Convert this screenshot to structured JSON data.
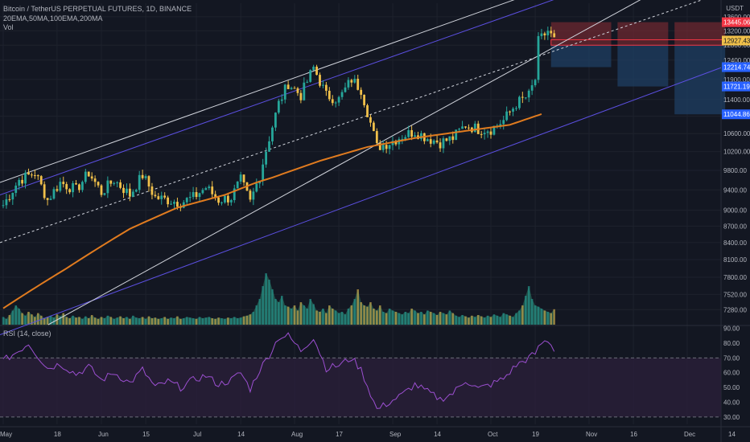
{
  "header": {
    "symbol_line": "Bitcoin / TetherUS PERPETUAL FUTURES, 1D, BINANCE",
    "ma_line": "20EMA,50MA,100EMA,200MA",
    "vol_label": "Vol",
    "rsi_label": "RSI (14, close)",
    "currency": "USDT"
  },
  "colors": {
    "background": "#131722",
    "grid": "#1e222d",
    "axis_text": "#b2b5be",
    "candle_up": "#26a69a",
    "candle_down": "#f0c04a",
    "ma100": "#e07b1f",
    "channel": "#5b4fe0",
    "trendline": "#d1d4dc",
    "rsi_line": "#9c4fd1",
    "rsi_fill": "#2a1f3a",
    "stop_zone": "#7a2a33",
    "target_zone": "#1f3f63",
    "last_price_label": "#f0c04a",
    "target_label": "#2962ff",
    "stop_label": "#f23645"
  },
  "chart_data": {
    "type": "candlestick",
    "x_axis": {
      "ticks": [
        "May",
        "18",
        "Jun",
        "15",
        "Jul",
        "14",
        "Aug",
        "17",
        "Sep",
        "14",
        "Oct",
        "19",
        "Nov",
        "16",
        "Dec",
        "14"
      ]
    },
    "price_axis": {
      "ticks": [
        7280,
        7520,
        7800,
        8100,
        8400,
        8700,
        9000,
        9400,
        9800,
        10200,
        10600,
        11000,
        11400,
        11900,
        12400,
        12800,
        13200,
        13600
      ],
      "scale": "log"
    },
    "price_labels": [
      {
        "value": "13445.06",
        "role": "stop"
      },
      {
        "value": "12927.43",
        "role": "last"
      },
      {
        "value": "12214.74",
        "role": "target"
      },
      {
        "value": "11721.19",
        "role": "target"
      },
      {
        "value": "11044.86",
        "role": "target"
      }
    ],
    "anchors": [
      [
        0,
        9100
      ],
      [
        5,
        9600
      ],
      [
        10,
        9750
      ],
      [
        14,
        9200
      ],
      [
        18,
        9550
      ],
      [
        23,
        9400
      ],
      [
        27,
        9750
      ],
      [
        31,
        9350
      ],
      [
        35,
        9600
      ],
      [
        40,
        9300
      ],
      [
        44,
        9700
      ],
      [
        48,
        9250
      ],
      [
        52,
        9200
      ],
      [
        56,
        9150
      ],
      [
        60,
        9250
      ],
      [
        64,
        9450
      ],
      [
        68,
        9200
      ],
      [
        72,
        9250
      ],
      [
        75,
        9600
      ],
      [
        78,
        9150
      ],
      [
        81,
        9700
      ],
      [
        84,
        10500
      ],
      [
        87,
        11300
      ],
      [
        90,
        11800
      ],
      [
        94,
        11500
      ],
      [
        98,
        12200
      ],
      [
        102,
        11500
      ],
      [
        106,
        11400
      ],
      [
        110,
        11900
      ],
      [
        113,
        11650
      ],
      [
        118,
        10300
      ],
      [
        122,
        10400
      ],
      [
        126,
        10550
      ],
      [
        130,
        10650
      ],
      [
        134,
        10500
      ],
      [
        138,
        10400
      ],
      [
        142,
        10500
      ],
      [
        146,
        10800
      ],
      [
        150,
        10700
      ],
      [
        154,
        10700
      ],
      [
        158,
        10900
      ],
      [
        162,
        11300
      ],
      [
        166,
        11500
      ],
      [
        168,
        11900
      ],
      [
        169,
        12900
      ],
      [
        172,
        13200
      ],
      [
        174,
        12927
      ]
    ],
    "candle_count": 175,
    "ma100": [
      [
        0,
        7300
      ],
      [
        20,
        7950
      ],
      [
        40,
        8650
      ],
      [
        55,
        9050
      ],
      [
        70,
        9300
      ],
      [
        80,
        9550
      ],
      [
        85,
        9650
      ],
      [
        100,
        10000
      ],
      [
        115,
        10300
      ],
      [
        130,
        10500
      ],
      [
        145,
        10650
      ],
      [
        160,
        10800
      ],
      [
        170,
        11050
      ]
    ],
    "volume": {
      "range": [
        0,
        100
      ],
      "values": [
        12,
        9,
        15,
        22,
        30,
        25,
        18,
        14,
        20,
        16,
        12,
        18,
        14,
        10,
        12,
        14,
        11,
        16,
        13,
        18,
        12,
        10,
        14,
        11,
        12,
        9,
        13,
        10,
        15,
        11,
        9,
        12,
        10,
        14,
        12,
        9,
        11,
        13,
        10,
        12,
        9,
        14,
        11,
        10,
        12,
        9,
        13,
        10,
        11,
        9,
        10,
        12,
        9,
        11,
        10,
        13,
        9,
        10,
        12,
        11,
        10,
        9,
        12,
        10,
        11,
        12,
        10,
        9,
        11,
        10,
        9,
        11,
        10,
        12,
        10,
        11,
        13,
        14,
        16,
        20,
        30,
        40,
        60,
        80,
        70,
        55,
        40,
        35,
        45,
        30,
        28,
        25,
        30,
        22,
        35,
        30,
        25,
        40,
        32,
        22,
        20,
        25,
        18,
        30,
        25,
        22,
        18,
        20,
        16,
        25,
        30,
        40,
        55,
        35,
        30,
        28,
        35,
        25,
        22,
        30,
        20,
        18,
        25,
        22,
        20,
        18,
        16,
        20,
        18,
        25,
        22,
        18,
        20,
        16,
        22,
        20,
        18,
        15,
        20,
        18,
        16,
        22,
        18,
        14,
        12,
        15,
        13,
        11,
        14,
        12,
        15,
        13,
        11,
        14,
        12,
        16,
        14,
        12,
        18,
        16,
        14,
        12,
        18,
        22,
        30,
        45,
        60,
        40,
        30,
        28,
        25,
        22,
        20,
        18,
        24
      ]
    },
    "rsi": {
      "range": [
        25,
        92
      ],
      "ticks": [
        30,
        40,
        50,
        60,
        70,
        80,
        90
      ],
      "overbought": 70,
      "oversold": 30,
      "anchors": [
        [
          0,
          68
        ],
        [
          5,
          75
        ],
        [
          8,
          80
        ],
        [
          10,
          74
        ],
        [
          14,
          63
        ],
        [
          18,
          66
        ],
        [
          23,
          59
        ],
        [
          27,
          64
        ],
        [
          31,
          55
        ],
        [
          35,
          60
        ],
        [
          40,
          53
        ],
        [
          44,
          62
        ],
        [
          48,
          50
        ],
        [
          52,
          54
        ],
        [
          56,
          50
        ],
        [
          60,
          55
        ],
        [
          64,
          58
        ],
        [
          68,
          52
        ],
        [
          72,
          55
        ],
        [
          75,
          60
        ],
        [
          78,
          49
        ],
        [
          81,
          62
        ],
        [
          84,
          72
        ],
        [
          87,
          84
        ],
        [
          90,
          85
        ],
        [
          94,
          75
        ],
        [
          98,
          84
        ],
        [
          102,
          63
        ],
        [
          106,
          65
        ],
        [
          110,
          70
        ],
        [
          113,
          62
        ],
        [
          118,
          35
        ],
        [
          122,
          40
        ],
        [
          126,
          45
        ],
        [
          130,
          52
        ],
        [
          134,
          47
        ],
        [
          138,
          42
        ],
        [
          142,
          46
        ],
        [
          146,
          55
        ],
        [
          150,
          49
        ],
        [
          154,
          52
        ],
        [
          158,
          56
        ],
        [
          162,
          65
        ],
        [
          166,
          70
        ],
        [
          168,
          73
        ],
        [
          170,
          80
        ],
        [
          172,
          82
        ],
        [
          174,
          76
        ]
      ]
    }
  }
}
